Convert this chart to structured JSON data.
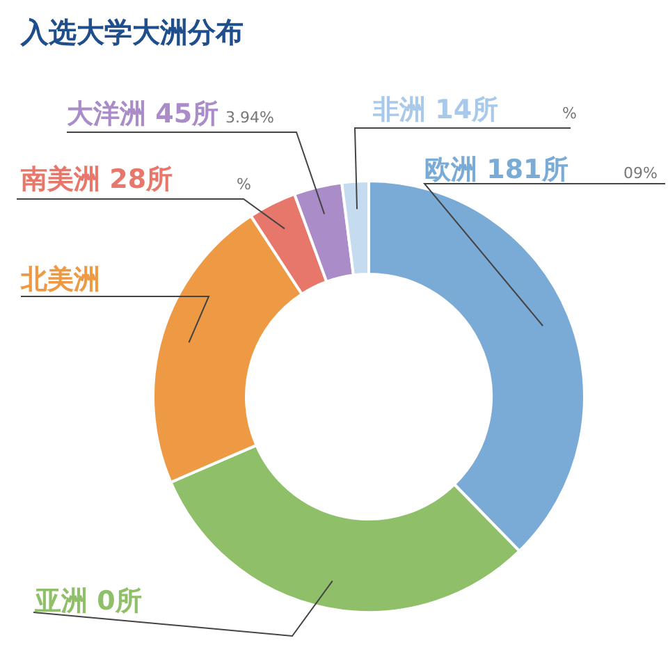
{
  "chart_data": {
    "type": "donut",
    "title": "入选大学大洲分布",
    "categories": [
      "欧洲 181所",
      "亚洲 0所",
      "北美洲",
      "南美洲 28所",
      "大洋洲 45所",
      "非洲 14所"
    ],
    "values": [
      37.7,
      30.8,
      22.3,
      3.6,
      3.6,
      2.0
    ],
    "colors": [
      "#7aaad6",
      "#8fc069",
      "#ee9a45",
      "#e8776b",
      "#a98cc8",
      "#c5dcf0"
    ],
    "annotations": [
      "09%",
      "%",
      "%",
      "3.94%"
    ],
    "legend": false
  }
}
